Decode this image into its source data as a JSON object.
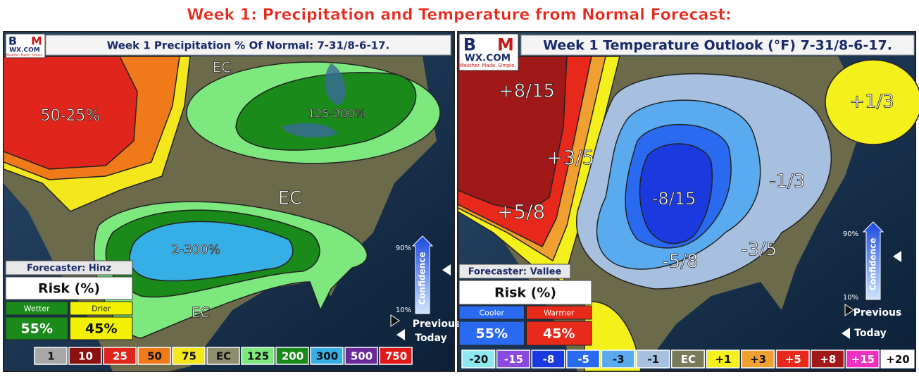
{
  "title": "Week 1: Precipitation and Temperature from Normal Forecast:",
  "panels": [
    {
      "logo": {
        "letters": [
          "B",
          "M"
        ],
        "site": "WX.COM",
        "tagline": "Weather. Made. Simple."
      },
      "heading": "Week 1 Precipitation % Of Normal: 7-31/8-6-17.",
      "map_labels": [
        "EC",
        "125-200%",
        "50-25%",
        "EC",
        "2-300%",
        "EC"
      ],
      "forecaster": "Forecaster: Hinz",
      "risk": {
        "title": "Risk (%)",
        "columns": [
          {
            "label": "Wetter",
            "value": "55%",
            "color": "#1a8a1a"
          },
          {
            "label": "Drier",
            "value": "45%",
            "color": "#f2f200"
          }
        ]
      },
      "confidence": {
        "high": "90%",
        "label": "Confidence",
        "low": "10%",
        "previous": "Previous",
        "today": "Today"
      },
      "legend": [
        {
          "label": "1",
          "color": "#a8a8a8"
        },
        {
          "label": "10",
          "color": "#8b1010"
        },
        {
          "label": "25",
          "color": "#e0251c"
        },
        {
          "label": "50",
          "color": "#f07a1a"
        },
        {
          "label": "75",
          "color": "#f4e81c"
        },
        {
          "label": "EC",
          "color": "#8e8e6e"
        },
        {
          "label": "125",
          "color": "#7de87d"
        },
        {
          "label": "200",
          "color": "#1a8a1a"
        },
        {
          "label": "300",
          "color": "#36aee6"
        },
        {
          "label": "500",
          "color": "#6a2a9a"
        },
        {
          "label": "750",
          "color": "#e01818"
        }
      ]
    },
    {
      "logo": {
        "letters": [
          "B",
          "M"
        ],
        "site": "WX.COM",
        "tagline": "Weather. Made. Simple."
      },
      "heading": "Week 1 Temperature Outlook (°F) 7-31/8-6-17.",
      "map_labels": [
        "+8/15",
        "+3/5",
        "+5/8",
        "-8/15",
        "-5/8",
        "-3/5",
        "-1/3",
        "+1/3"
      ],
      "forecaster": "Forecaster: Vallee",
      "risk": {
        "title": "Risk (%)",
        "columns": [
          {
            "label": "Cooler",
            "value": "55%",
            "color": "#2a6af0"
          },
          {
            "label": "Warmer",
            "value": "45%",
            "color": "#e82a1a"
          }
        ]
      },
      "confidence": {
        "high": "90%",
        "label": "Confidence",
        "low": "10%",
        "previous": "Previous",
        "today": "Today"
      },
      "legend": [
        {
          "label": "-20",
          "color": "#8ee8f0"
        },
        {
          "label": "-15",
          "color": "#8a4ae0"
        },
        {
          "label": "-8",
          "color": "#1a3ae0"
        },
        {
          "label": "-5",
          "color": "#2a6af0"
        },
        {
          "label": "-3",
          "color": "#5aaaf0"
        },
        {
          "label": "-1",
          "color": "#a8c0e0"
        },
        {
          "label": "EC",
          "color": "#7a7a5a"
        },
        {
          "label": "+1",
          "color": "#f4f01c"
        },
        {
          "label": "+3",
          "color": "#f0a030"
        },
        {
          "label": "+5",
          "color": "#e8281a"
        },
        {
          "label": "+8",
          "color": "#a01818"
        },
        {
          "label": "+15",
          "color": "#f030c0"
        },
        {
          "label": "+20",
          "color": "#ffffff"
        }
      ]
    }
  ]
}
